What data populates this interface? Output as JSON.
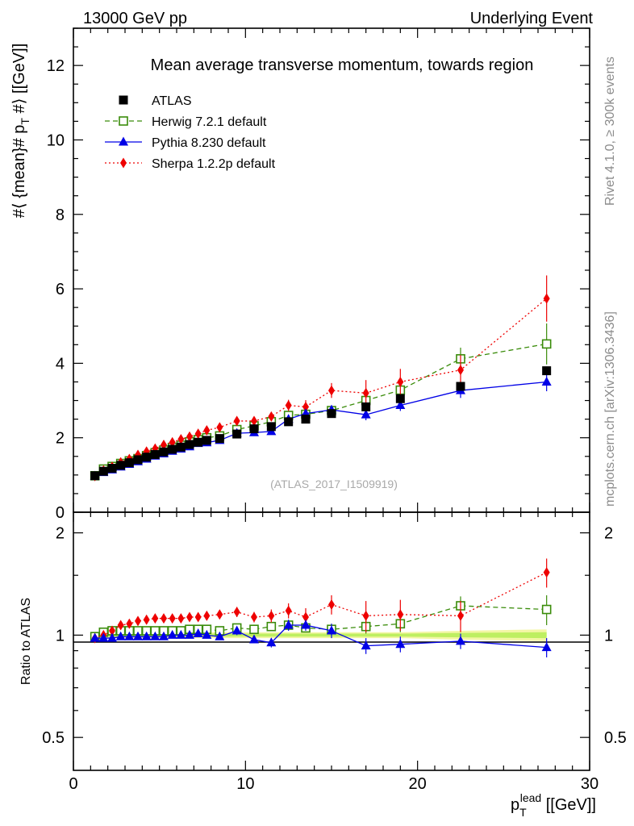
{
  "header": {
    "left": "13000 GeV pp",
    "right": "Underlying Event"
  },
  "side_labels": {
    "rivet": "Rivet 4.1.0, ≥ 300k events",
    "mcplots": "mcplots.cern.ch [arXiv:1306.3436]"
  },
  "colors": {
    "atlas": "#000000",
    "herwig": "#3a8c0a",
    "pythia": "#0000e6",
    "sherpa": "#ee0000",
    "band": "#f2f59a",
    "band_inner": "#b8ee5a"
  },
  "chart_data": [
    {
      "type": "scatter",
      "title": "Mean average transverse momentum, towards region",
      "watermark": "(ATLAS_2017_I1509919)",
      "xlabel": "",
      "ylabel": "#⟨ {mean}# p_T #⟩ [[GeV]]",
      "xlim": [
        0,
        30
      ],
      "ylim": [
        0,
        13
      ],
      "yticks": [
        "0",
        "2",
        "4",
        "6",
        "8",
        "10",
        "12"
      ],
      "legend": [
        "ATLAS",
        "Herwig 7.2.1 default",
        "Pythia 8.230 default",
        "Sherpa 1.2.2p default"
      ],
      "legend_position": "top-left",
      "x": [
        1.25,
        1.75,
        2.25,
        2.75,
        3.25,
        3.75,
        4.25,
        4.75,
        5.25,
        5.75,
        6.25,
        6.75,
        7.25,
        7.75,
        8.5,
        9.5,
        10.5,
        11.5,
        12.5,
        13.5,
        15.0,
        17.0,
        19.0,
        22.5,
        27.5
      ],
      "series": [
        {
          "name": "ATLAS",
          "values": [
            0.98,
            1.1,
            1.18,
            1.26,
            1.33,
            1.41,
            1.48,
            1.55,
            1.62,
            1.69,
            1.75,
            1.82,
            1.88,
            1.93,
            1.98,
            2.1,
            2.24,
            2.3,
            2.43,
            2.5,
            2.65,
            2.83,
            3.05,
            3.38,
            3.8
          ],
          "errors": [
            0.02,
            0.02,
            0.02,
            0.02,
            0.02,
            0.02,
            0.02,
            0.02,
            0.02,
            0.02,
            0.02,
            0.02,
            0.02,
            0.02,
            0.02,
            0.03,
            0.03,
            0.03,
            0.04,
            0.04,
            0.05,
            0.06,
            0.07,
            0.08,
            0.1
          ]
        },
        {
          "name": "Herwig 7.2.1 default",
          "values": [
            0.98,
            1.16,
            1.23,
            1.31,
            1.38,
            1.44,
            1.52,
            1.6,
            1.67,
            1.74,
            1.8,
            1.89,
            1.95,
            2.0,
            2.05,
            2.22,
            2.32,
            2.43,
            2.6,
            2.63,
            2.73,
            3.0,
            3.28,
            4.12,
            4.52
          ],
          "errors": [
            0.02,
            0.02,
            0.02,
            0.02,
            0.02,
            0.02,
            0.02,
            0.02,
            0.02,
            0.02,
            0.02,
            0.02,
            0.03,
            0.03,
            0.03,
            0.04,
            0.05,
            0.06,
            0.08,
            0.09,
            0.1,
            0.15,
            0.2,
            0.3,
            0.55
          ]
        },
        {
          "name": "Pythia 8.230 default",
          "values": [
            0.97,
            1.07,
            1.14,
            1.22,
            1.29,
            1.36,
            1.43,
            1.51,
            1.57,
            1.64,
            1.7,
            1.76,
            1.85,
            1.87,
            1.93,
            2.12,
            2.14,
            2.17,
            2.5,
            2.65,
            2.75,
            2.62,
            2.87,
            3.27,
            3.5
          ],
          "errors": [
            0.02,
            0.02,
            0.02,
            0.02,
            0.02,
            0.02,
            0.02,
            0.02,
            0.02,
            0.02,
            0.02,
            0.02,
            0.03,
            0.03,
            0.03,
            0.05,
            0.06,
            0.07,
            0.1,
            0.11,
            0.12,
            0.15,
            0.15,
            0.2,
            0.25
          ]
        },
        {
          "name": "Sherpa 1.2.2p default",
          "values": [
            0.97,
            1.12,
            1.22,
            1.34,
            1.43,
            1.54,
            1.63,
            1.71,
            1.81,
            1.88,
            1.96,
            2.03,
            2.11,
            2.2,
            2.28,
            2.45,
            2.45,
            2.57,
            2.87,
            2.83,
            3.27,
            3.2,
            3.5,
            3.82,
            5.74
          ],
          "errors": [
            0.02,
            0.02,
            0.02,
            0.02,
            0.02,
            0.02,
            0.03,
            0.03,
            0.03,
            0.03,
            0.04,
            0.04,
            0.05,
            0.05,
            0.06,
            0.08,
            0.09,
            0.1,
            0.15,
            0.18,
            0.2,
            0.35,
            0.35,
            0.4,
            0.62
          ]
        }
      ]
    },
    {
      "type": "scatter",
      "title": "",
      "xlabel": "p_T^lead [[GeV]]",
      "ylabel": "Ratio to ATLAS",
      "xlim": [
        0,
        30
      ],
      "ylim": [
        0.4,
        2.3
      ],
      "yscale": "log",
      "xticks": [
        "0",
        "10",
        "20",
        "30"
      ],
      "yticks": [
        "0.5",
        "1",
        "2"
      ],
      "x": [
        1.25,
        1.75,
        2.25,
        2.75,
        3.25,
        3.75,
        4.25,
        4.75,
        5.25,
        5.75,
        6.25,
        6.75,
        7.25,
        7.75,
        8.5,
        9.5,
        10.5,
        11.5,
        12.5,
        13.5,
        15.0,
        17.0,
        19.0,
        22.5,
        27.5
      ],
      "series": [
        {
          "name": "Herwig 7.2.1 default",
          "values": [
            0.99,
            1.02,
            1.03,
            1.03,
            1.03,
            1.03,
            1.03,
            1.03,
            1.03,
            1.03,
            1.03,
            1.04,
            1.04,
            1.04,
            1.03,
            1.05,
            1.04,
            1.06,
            1.07,
            1.05,
            1.04,
            1.06,
            1.08,
            1.22,
            1.19
          ],
          "errors": [
            0.01,
            0.01,
            0.01,
            0.01,
            0.01,
            0.01,
            0.01,
            0.01,
            0.01,
            0.01,
            0.01,
            0.01,
            0.01,
            0.01,
            0.01,
            0.02,
            0.02,
            0.02,
            0.03,
            0.03,
            0.04,
            0.05,
            0.06,
            0.08,
            0.12
          ]
        },
        {
          "name": "Pythia 8.230 default",
          "values": [
            0.98,
            0.98,
            0.98,
            0.99,
            0.99,
            0.99,
            0.99,
            0.99,
            0.99,
            1.0,
            1.0,
            1.0,
            1.01,
            1.0,
            0.99,
            1.03,
            0.97,
            0.95,
            1.07,
            1.07,
            1.03,
            0.93,
            0.94,
            0.96,
            0.92
          ],
          "errors": [
            0.01,
            0.01,
            0.01,
            0.01,
            0.01,
            0.01,
            0.01,
            0.01,
            0.01,
            0.01,
            0.01,
            0.01,
            0.02,
            0.02,
            0.02,
            0.03,
            0.02,
            0.03,
            0.04,
            0.04,
            0.05,
            0.05,
            0.05,
            0.05,
            0.06
          ]
        },
        {
          "name": "Sherpa 1.2.2p default",
          "values": [
            0.98,
            1.0,
            1.03,
            1.07,
            1.08,
            1.1,
            1.11,
            1.12,
            1.12,
            1.12,
            1.12,
            1.13,
            1.13,
            1.14,
            1.15,
            1.17,
            1.13,
            1.14,
            1.18,
            1.13,
            1.23,
            1.14,
            1.15,
            1.14,
            1.53
          ],
          "errors": [
            0.01,
            0.01,
            0.01,
            0.01,
            0.01,
            0.01,
            0.01,
            0.01,
            0.01,
            0.02,
            0.02,
            0.02,
            0.02,
            0.02,
            0.03,
            0.04,
            0.04,
            0.05,
            0.06,
            0.07,
            0.08,
            0.12,
            0.12,
            0.12,
            0.15
          ]
        }
      ],
      "band_errors": [
        0.02,
        0.02,
        0.02,
        0.02,
        0.02,
        0.02,
        0.02,
        0.02,
        0.02,
        0.02,
        0.02,
        0.02,
        0.02,
        0.02,
        0.02,
        0.02,
        0.02,
        0.02,
        0.02,
        0.02,
        0.02,
        0.02,
        0.02,
        0.03,
        0.04
      ]
    }
  ]
}
